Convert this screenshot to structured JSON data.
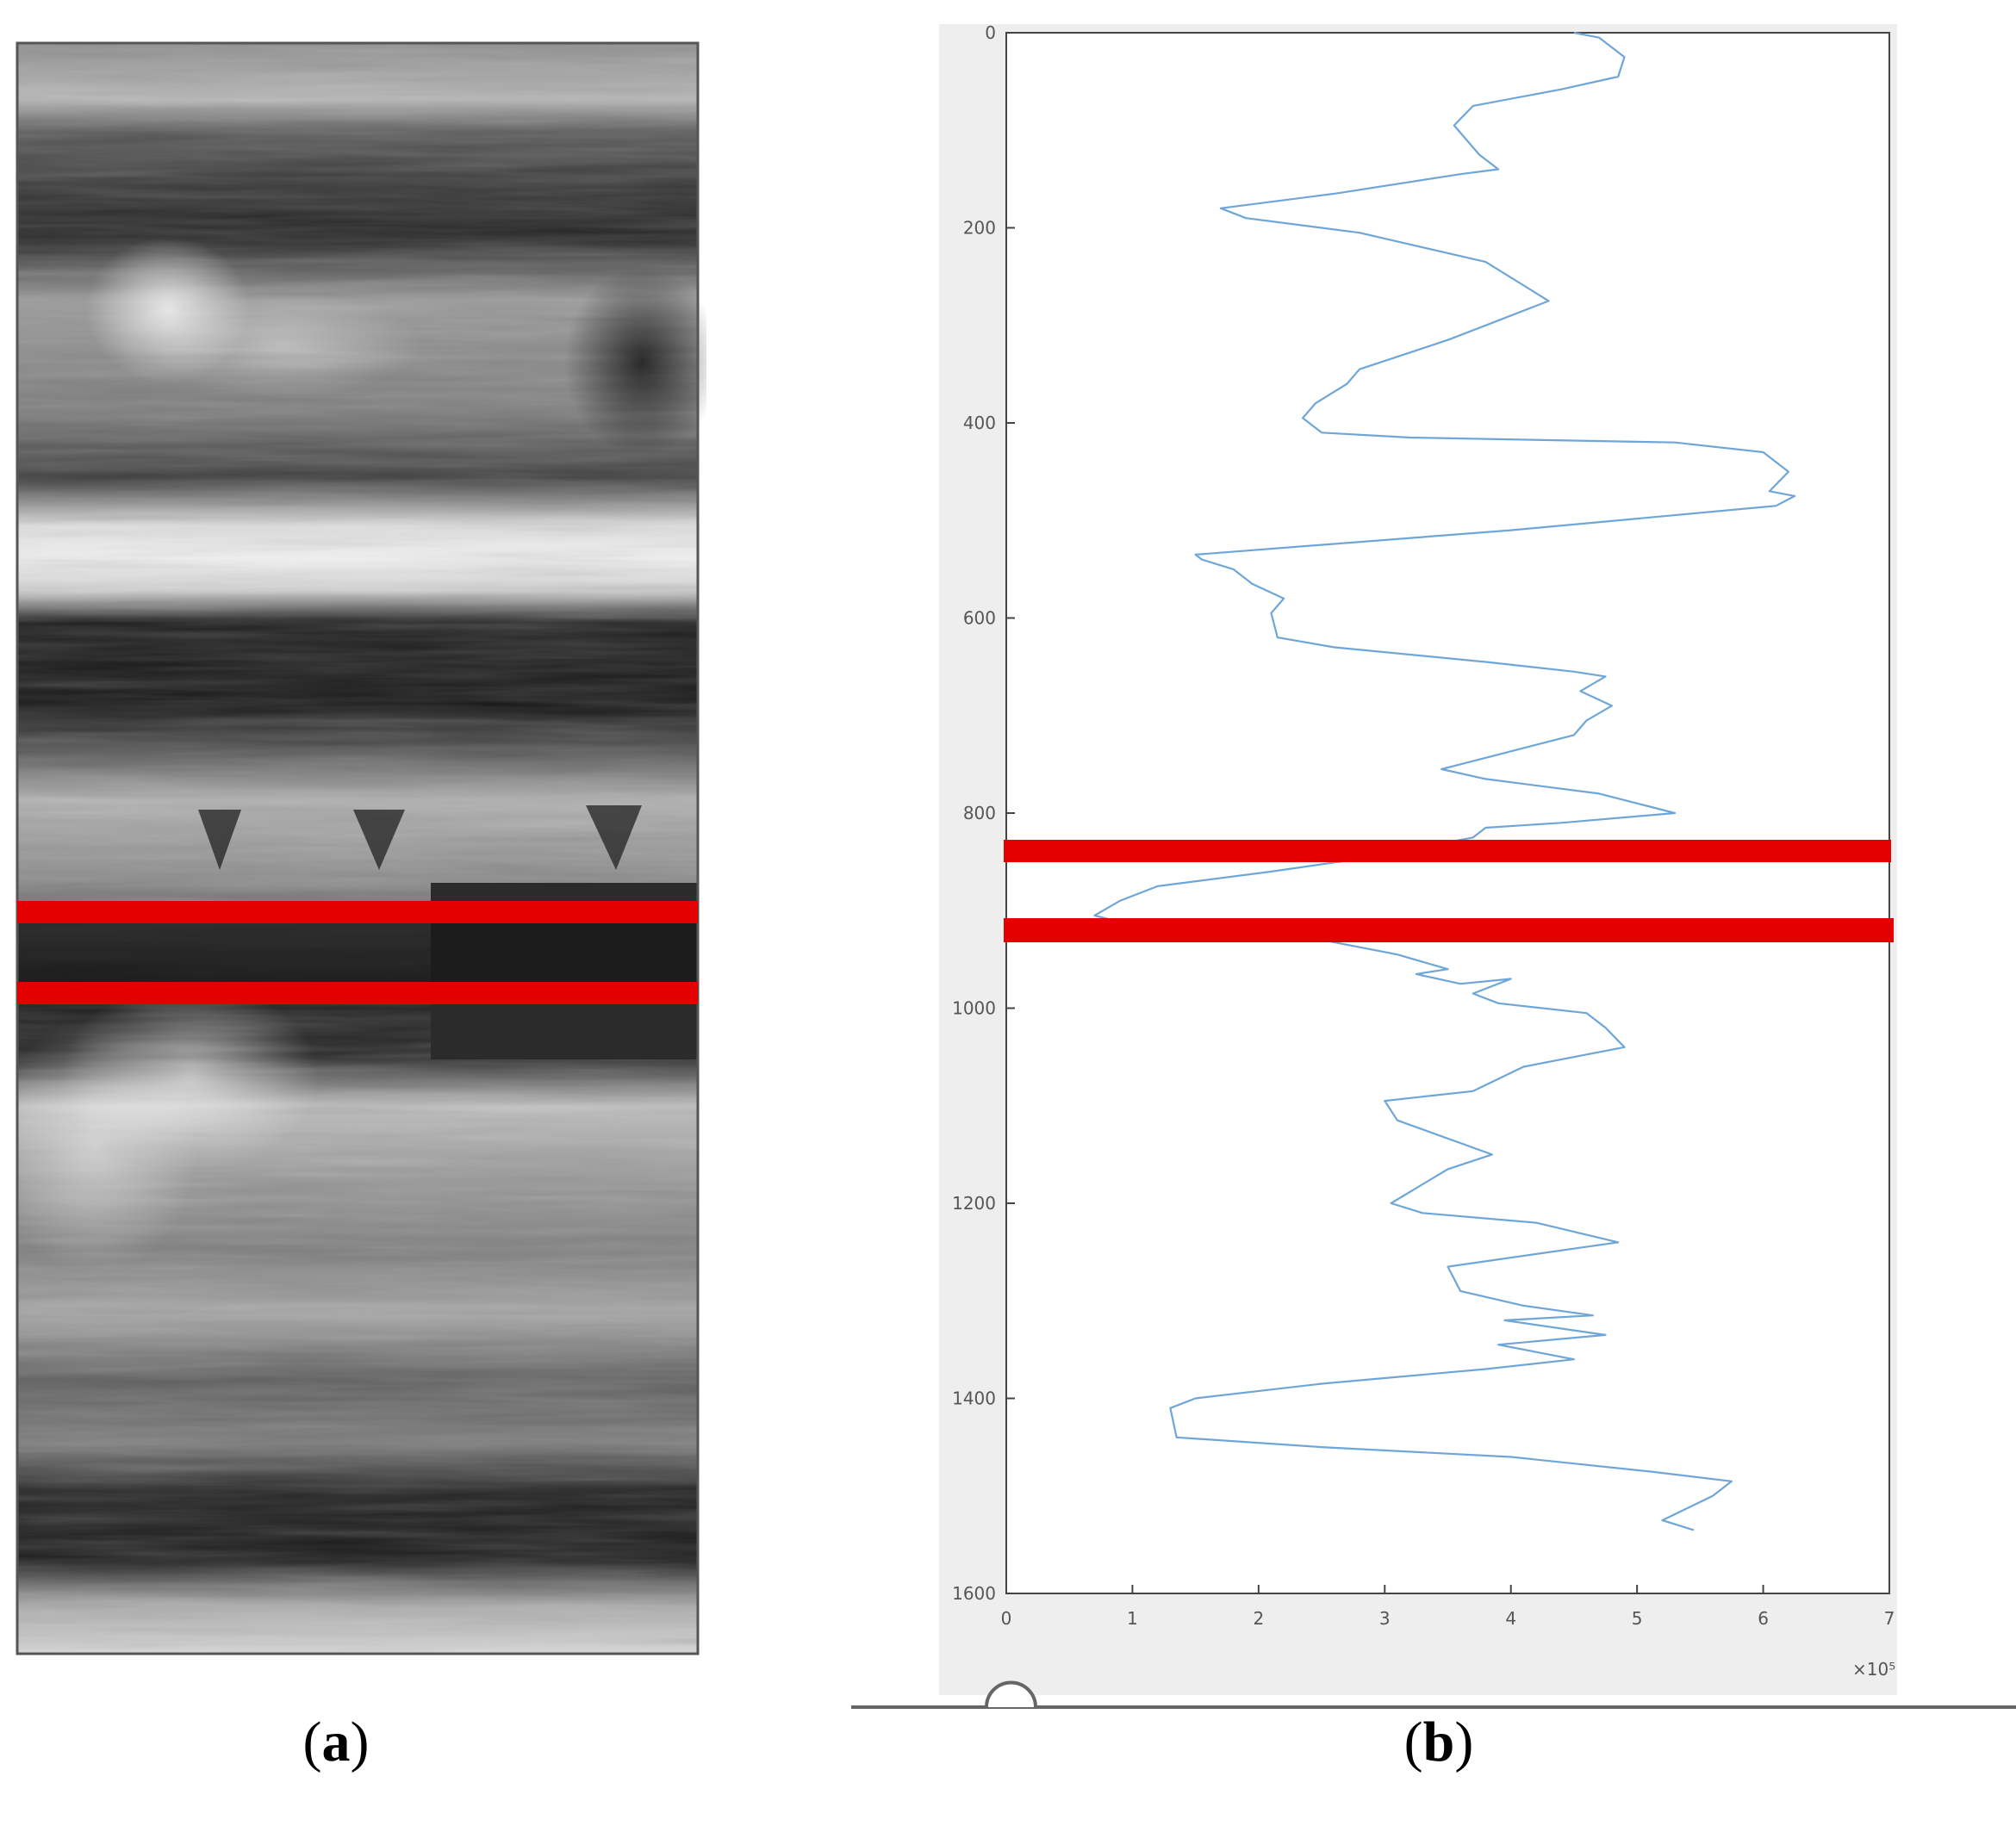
{
  "figure": {
    "panel_a_label": "a",
    "panel_b_label": "b"
  },
  "colors": {
    "trace": "#6fa6d8",
    "highlight": "#e50000",
    "axes": "#444444",
    "figure_bg": "#eeeeee"
  },
  "panel_a": {
    "description_type": "grayscale-image",
    "highlight_band_count": 2
  },
  "chart_data": {
    "type": "line",
    "orientation": "vertical-profile",
    "title": "",
    "xlabel": "",
    "ylabel": "",
    "x_exponent_label": "×10⁵",
    "xlim": [
      0,
      7
    ],
    "ylim": [
      1600,
      0
    ],
    "x_ticks": [
      "0",
      "1",
      "2",
      "3",
      "4",
      "5",
      "6",
      "7"
    ],
    "y_ticks": [
      "0",
      "200",
      "400",
      "600",
      "800",
      "1000",
      "1200",
      "1400",
      "1600"
    ],
    "grid": false,
    "series": [
      {
        "points": [
          [
            4.5,
            0
          ],
          [
            4.7,
            5
          ],
          [
            4.9,
            25
          ],
          [
            4.85,
            45
          ],
          [
            4.4,
            58
          ],
          [
            3.7,
            75
          ],
          [
            3.55,
            95
          ],
          [
            3.75,
            125
          ],
          [
            3.9,
            140
          ],
          [
            3.6,
            145
          ],
          [
            2.6,
            165
          ],
          [
            1.7,
            180
          ],
          [
            1.9,
            190
          ],
          [
            2.8,
            205
          ],
          [
            3.8,
            235
          ],
          [
            4.3,
            275
          ],
          [
            3.8,
            300
          ],
          [
            3.5,
            315
          ],
          [
            2.8,
            345
          ],
          [
            2.7,
            360
          ],
          [
            2.45,
            380
          ],
          [
            2.35,
            395
          ],
          [
            2.5,
            410
          ],
          [
            3.2,
            415
          ],
          [
            5.3,
            420
          ],
          [
            6.0,
            430
          ],
          [
            6.2,
            450
          ],
          [
            6.05,
            470
          ],
          [
            6.25,
            475
          ],
          [
            6.1,
            485
          ],
          [
            4.0,
            510
          ],
          [
            1.5,
            535
          ],
          [
            1.55,
            540
          ],
          [
            1.8,
            550
          ],
          [
            1.95,
            565
          ],
          [
            2.2,
            580
          ],
          [
            2.1,
            595
          ],
          [
            2.15,
            620
          ],
          [
            2.6,
            630
          ],
          [
            3.8,
            645
          ],
          [
            4.5,
            655
          ],
          [
            4.75,
            660
          ],
          [
            4.55,
            675
          ],
          [
            4.8,
            690
          ],
          [
            4.6,
            705
          ],
          [
            4.5,
            720
          ],
          [
            3.9,
            740
          ],
          [
            3.45,
            755
          ],
          [
            3.8,
            765
          ],
          [
            4.7,
            780
          ],
          [
            5.3,
            800
          ],
          [
            4.4,
            810
          ],
          [
            3.8,
            815
          ],
          [
            3.7,
            825
          ],
          [
            2.9,
            845
          ],
          [
            2.1,
            860
          ],
          [
            1.2,
            875
          ],
          [
            0.9,
            890
          ],
          [
            0.7,
            905
          ],
          [
            0.85,
            910
          ],
          [
            1.3,
            920
          ],
          [
            2.5,
            930
          ],
          [
            3.1,
            945
          ],
          [
            3.5,
            960
          ],
          [
            3.25,
            965
          ],
          [
            3.6,
            975
          ],
          [
            4.0,
            970
          ],
          [
            3.7,
            985
          ],
          [
            3.9,
            995
          ],
          [
            4.6,
            1005
          ],
          [
            4.75,
            1020
          ],
          [
            4.9,
            1040
          ],
          [
            4.1,
            1060
          ],
          [
            3.7,
            1085
          ],
          [
            3.0,
            1095
          ],
          [
            3.1,
            1115
          ],
          [
            3.85,
            1150
          ],
          [
            3.5,
            1165
          ],
          [
            3.05,
            1200
          ],
          [
            3.3,
            1210
          ],
          [
            4.2,
            1220
          ],
          [
            4.85,
            1240
          ],
          [
            3.5,
            1265
          ],
          [
            3.6,
            1290
          ],
          [
            4.1,
            1305
          ],
          [
            4.65,
            1315
          ],
          [
            3.95,
            1320
          ],
          [
            4.75,
            1335
          ],
          [
            3.9,
            1345
          ],
          [
            4.5,
            1360
          ],
          [
            3.8,
            1370
          ],
          [
            2.5,
            1385
          ],
          [
            1.5,
            1400
          ],
          [
            1.3,
            1410
          ],
          [
            1.35,
            1440
          ],
          [
            2.5,
            1450
          ],
          [
            4.0,
            1460
          ],
          [
            5.1,
            1475
          ],
          [
            5.75,
            1485
          ],
          [
            5.6,
            1500
          ],
          [
            5.2,
            1525
          ],
          [
            5.45,
            1535
          ]
        ]
      }
    ],
    "highlight_depths": [
      840,
      915
    ]
  }
}
